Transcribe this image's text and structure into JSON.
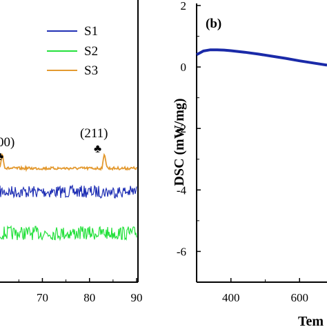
{
  "colors": {
    "S1": "#1f2fb4",
    "S2": "#22e03a",
    "S3": "#e3992f",
    "dsc": "#1a2aa8",
    "axis": "#000000"
  },
  "chart_data": [
    {
      "panel": "a",
      "type": "line",
      "title": "",
      "xlabel": "",
      "ylabel": "",
      "x_ticks": [
        "70",
        "80",
        "90"
      ],
      "xlim_visible": [
        61,
        90
      ],
      "series": [
        {
          "name": "S1",
          "baseline": 0.3,
          "noise": "high"
        },
        {
          "name": "S2",
          "baseline": 0.1,
          "noise": "high"
        },
        {
          "name": "S3",
          "baseline": 0.45,
          "noise": "low",
          "peaks": [
            {
              "x": 83.2,
              "label": "(211)",
              "marker": "♣"
            },
            {
              "x": 61.5,
              "label": "00)",
              "marker": "♣"
            }
          ]
        }
      ],
      "legend": {
        "placement": "top-right",
        "entries": [
          "S1",
          "S2",
          "S3"
        ]
      },
      "annotations": [
        "(211)",
        "00)",
        "♣"
      ]
    },
    {
      "panel": "b",
      "panel_label": "(b)",
      "type": "line",
      "ylabel": "DSC (mW/mg)",
      "xlabel_partial": "Tem",
      "y_ticks": [
        "2",
        "0",
        "-2",
        "-4",
        "-6"
      ],
      "x_ticks": [
        "400",
        "600"
      ],
      "ylim": [
        -7,
        2
      ],
      "xlim_visible": [
        300,
        680
      ],
      "series": [
        {
          "name": "",
          "x": [
            300,
            320,
            340,
            360,
            380,
            400,
            440,
            480,
            520,
            560,
            600,
            640,
            680
          ],
          "y": [
            0.4,
            0.52,
            0.56,
            0.56,
            0.55,
            0.53,
            0.48,
            0.42,
            0.35,
            0.28,
            0.2,
            0.13,
            0.06
          ]
        }
      ]
    }
  ]
}
